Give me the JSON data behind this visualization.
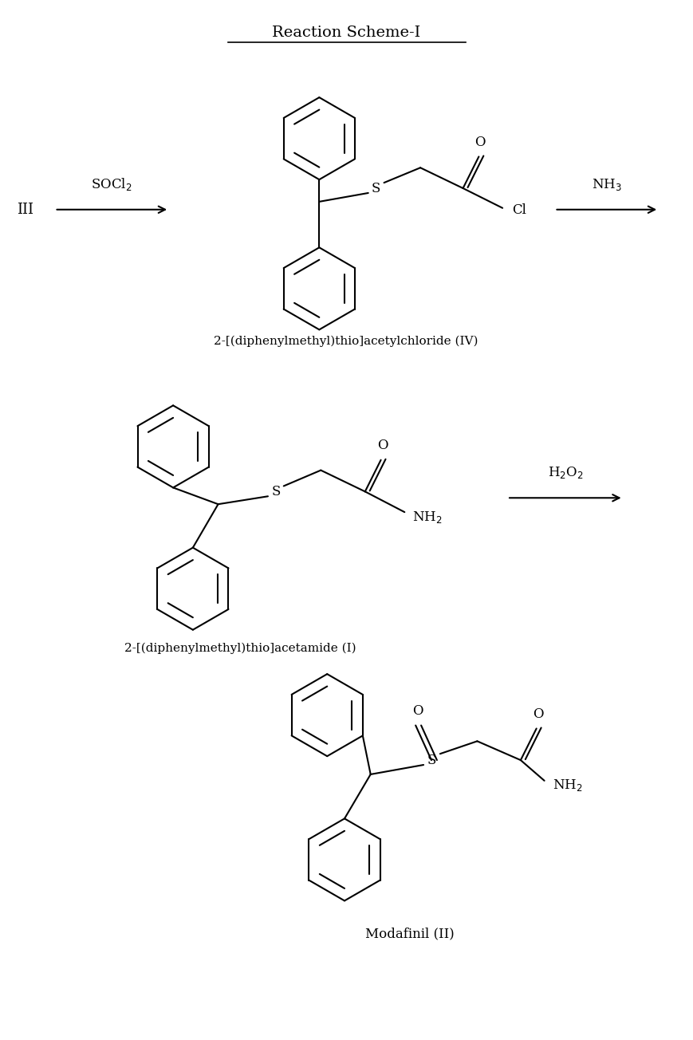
{
  "title": "Reaction Scheme-I",
  "title_fontsize": 14,
  "label_iv": "2-[(diphenylmethyl)thio]acetylchloride (IV)",
  "label_i": "2-[(diphenylmethyl)thio]acetamide (I)",
  "label_ii": "Modafinil (II)",
  "bg_color": "#ffffff",
  "line_color": "#000000",
  "line_width": 1.5,
  "font_family": "serif"
}
